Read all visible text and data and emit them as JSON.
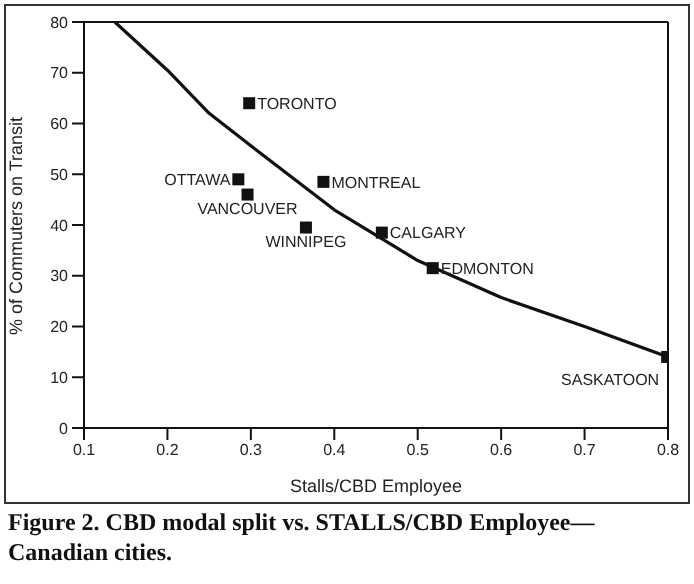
{
  "chart_data": {
    "type": "scatter",
    "title": "Figure 2. CBD modal split vs. STALLS/CBD Employee—Canadian cities.",
    "xlabel": "Stalls/CBD Employee",
    "ylabel": "% of Commuters on Transit",
    "series": [
      {
        "color": "#111111",
        "marker": "square",
        "x": [
          0.298,
          0.285,
          0.296,
          0.387,
          0.366,
          0.457,
          0.518,
          0.799
        ],
        "values": [
          64,
          49,
          46,
          48.5,
          39.5,
          38.5,
          31.5,
          14
        ]
      },
      {
        "type": "line",
        "color": "#111111",
        "marker": "none",
        "line_style": "solid",
        "x": [
          0.137,
          0.2,
          0.25,
          0.3,
          0.4,
          0.5,
          0.6,
          0.7,
          0.8
        ],
        "values": [
          80,
          70.5,
          62,
          55.6,
          43,
          33,
          25.7,
          20,
          14
        ]
      }
    ],
    "annotations": [
      {
        "text": "TORONTO",
        "x": 0.298,
        "y": 64
      },
      {
        "text": "OTTAWA",
        "x": 0.285,
        "y": 49
      },
      {
        "text": "VANCOUVER",
        "x": 0.296,
        "y": 46
      },
      {
        "text": "MONTREAL",
        "x": 0.387,
        "y": 48.5
      },
      {
        "text": "WINNIPEG",
        "x": 0.366,
        "y": 39.5
      },
      {
        "text": "CALGARY",
        "x": 0.457,
        "y": 38.5
      },
      {
        "text": "EDMONTON",
        "x": 0.518,
        "y": 31.5
      },
      {
        "text": "SASKATOON",
        "x": 0.799,
        "y": 14
      }
    ],
    "xlim": [
      0.1,
      0.8
    ],
    "xticks": [
      0.1,
      0.2,
      0.3,
      0.4,
      0.5,
      0.6,
      0.7,
      0.8
    ],
    "ylim": [
      0,
      80
    ],
    "yticks": [
      0,
      10,
      20,
      30,
      40,
      50,
      60,
      70,
      80
    ]
  }
}
